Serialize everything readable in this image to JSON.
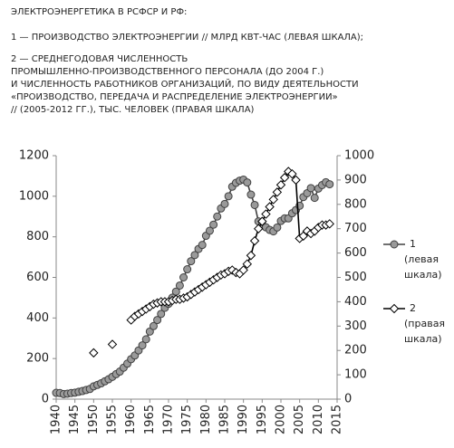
{
  "chart_data": {
    "type": "line",
    "title": "ЭЛЕКТРОЭНЕРГЕТИКА В РСФСР И РФ:",
    "notes": [
      "1 — ПРОИЗВОДСТВО ЭЛЕКТРОЭНЕРГИИ // МЛРД КВТ-ЧАС (ЛЕВАЯ ШКАЛА);",
      "2 — СРЕДНЕГОДОВАЯ ЧИСЛЕННОСТЬ",
      "ПРОМЫШЛЕННО-ПРОИЗВОДСТВЕННОГО ПЕРСОНАЛА (ДО 2004 Г.)",
      "И ЧИСЛЕННОСТЬ РАБОТНИКОВ ОРГАНИЗАЦИЙ,  ПО ВИДУ ДЕЯТЕЛЬНОСТИ",
      "«ПРОИЗВОДСТВО, ПЕРЕДАЧА И РАСПРЕДЕЛЕНИЕ ЭЛЕКТРОЭНЕРГИИ»",
      "// (2005-2012 ГГ.), ТЫС. ЧЕЛОВЕК (ПРАВАЯ ШКАЛА)"
    ],
    "x": [
      1940,
      1941,
      1942,
      1943,
      1944,
      1945,
      1946,
      1947,
      1948,
      1949,
      1950,
      1951,
      1952,
      1953,
      1954,
      1955,
      1956,
      1957,
      1958,
      1959,
      1960,
      1961,
      1962,
      1963,
      1964,
      1965,
      1966,
      1967,
      1968,
      1969,
      1970,
      1971,
      1972,
      1973,
      1974,
      1975,
      1976,
      1977,
      1978,
      1979,
      1980,
      1981,
      1982,
      1983,
      1984,
      1985,
      1986,
      1987,
      1988,
      1989,
      1990,
      1991,
      1992,
      1993,
      1994,
      1995,
      1996,
      1997,
      1998,
      1999,
      2000,
      2001,
      2002,
      2003,
      2004,
      2005,
      2006,
      2007,
      2008,
      2009,
      2010,
      2011,
      2012,
      2013
    ],
    "xlim": [
      1940,
      2015
    ],
    "xticks": [
      1940,
      1945,
      1950,
      1955,
      1960,
      1965,
      1970,
      1975,
      1980,
      1985,
      1990,
      1995,
      2000,
      2005,
      2010,
      2015
    ],
    "ylim": [
      0,
      1200
    ],
    "yticks": [
      0,
      200,
      400,
      600,
      800,
      1000,
      1200
    ],
    "y2lim": [
      0,
      1000
    ],
    "y2ticks": [
      0,
      100,
      200,
      300,
      400,
      500,
      600,
      700,
      800,
      900,
      1000
    ],
    "series": [
      {
        "name": "1",
        "scale_label": [
          "(левая",
          "шкала)"
        ],
        "color": "#404040",
        "marker": "circle",
        "marker_fill": "#9a9a9a",
        "values": [
          31,
          30,
          25,
          27,
          30,
          32,
          36,
          40,
          45,
          50,
          63,
          70,
          78,
          88,
          98,
          110,
          123,
          136,
          155,
          175,
          197,
          215,
          240,
          265,
          295,
          333,
          360,
          390,
          420,
          450,
          470,
          500,
          530,
          560,
          600,
          640,
          680,
          710,
          740,
          760,
          805,
          830,
          860,
          900,
          940,
          962,
          1000,
          1047,
          1066,
          1077,
          1082,
          1068,
          1008,
          957,
          876,
          860,
          847,
          834,
          827,
          846,
          878,
          891,
          891,
          916,
          932,
          953,
          996,
          1015,
          1040,
          992,
          1038,
          1055,
          1069,
          1059
        ]
      },
      {
        "name": "2",
        "scale_label": [
          "(правая",
          "шкала)"
        ],
        "color": "#000000",
        "marker": "diamond",
        "marker_fill": "#ffffff",
        "axis": "y2",
        "values": [
          null,
          null,
          null,
          null,
          null,
          null,
          null,
          null,
          null,
          null,
          190,
          null,
          null,
          null,
          null,
          225,
          null,
          null,
          null,
          null,
          325,
          340,
          350,
          360,
          370,
          380,
          390,
          395,
          400,
          400,
          400,
          405,
          410,
          410,
          415,
          420,
          430,
          440,
          450,
          460,
          470,
          480,
          490,
          500,
          510,
          515,
          525,
          530,
          520,
          515,
          530,
          555,
          590,
          650,
          700,
          730,
          760,
          790,
          820,
          850,
          880,
          910,
          935,
          925,
          900,
          660,
          670,
          690,
          680,
          690,
          705,
          715,
          715,
          720
        ]
      }
    ]
  }
}
